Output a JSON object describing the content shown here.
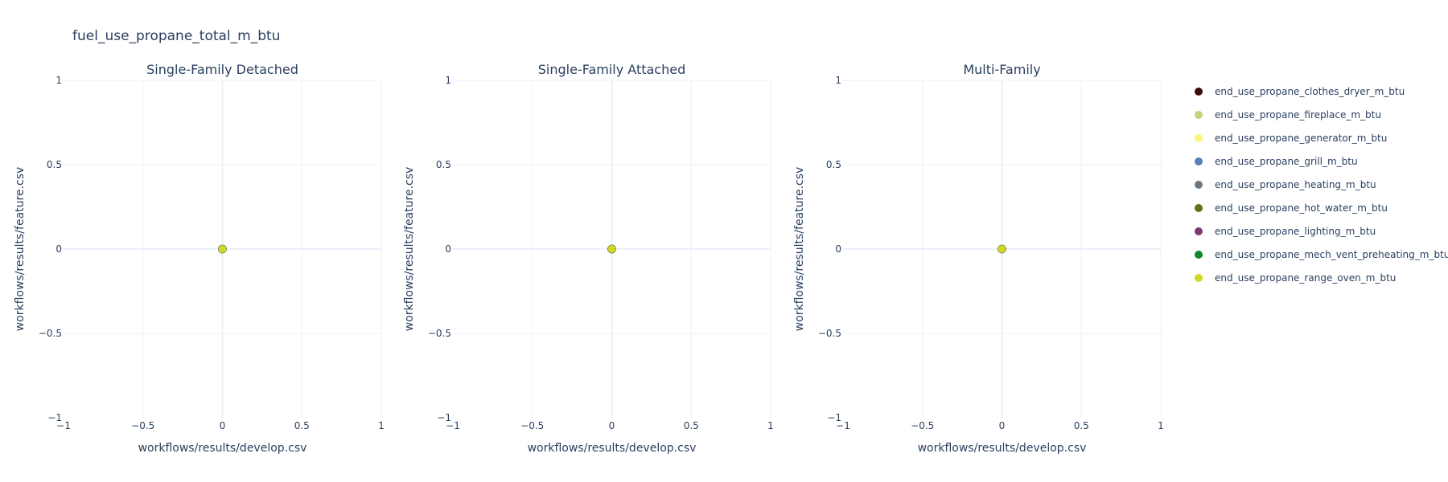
{
  "figure_title": "fuel_use_propane_total_m_btu",
  "legend": [
    {
      "name": "end_use_propane_clothes_dryer_m_btu",
      "color": "#3b0a0a"
    },
    {
      "name": "end_use_propane_fireplace_m_btu",
      "color": "#c8cf7a"
    },
    {
      "name": "end_use_propane_generator_m_btu",
      "color": "#fbf57a"
    },
    {
      "name": "end_use_propane_grill_m_btu",
      "color": "#5580b5"
    },
    {
      "name": "end_use_propane_heating_m_btu",
      "color": "#6a7a85"
    },
    {
      "name": "end_use_propane_hot_water_m_btu",
      "color": "#6b6d10"
    },
    {
      "name": "end_use_propane_lighting_m_btu",
      "color": "#7c3a70"
    },
    {
      "name": "end_use_propane_mech_vent_preheating_m_btu",
      "color": "#0b8a2a"
    },
    {
      "name": "end_use_propane_range_oven_m_btu",
      "color": "#cfd824"
    }
  ],
  "chart_data": [
    {
      "type": "scatter",
      "title": "Single-Family Detached",
      "xlabel": "workflows/results/develop.csv",
      "ylabel": "workflows/results/feature.csv",
      "xlim": [
        -1,
        1
      ],
      "ylim": [
        -1,
        1
      ],
      "xticks": [
        -1,
        -0.5,
        0,
        0.5,
        1
      ],
      "yticks": [
        -1,
        -0.5,
        0,
        0.5,
        1
      ],
      "xtick_labels": [
        "−1",
        "−0.5",
        "0",
        "0.5",
        "1"
      ],
      "ytick_labels": [
        "−1",
        "−0.5",
        "0",
        "0.5",
        "1"
      ],
      "series": [
        {
          "name": "end_use_propane_clothes_dryer_m_btu",
          "x": [
            0
          ],
          "y": [
            0
          ]
        },
        {
          "name": "end_use_propane_fireplace_m_btu",
          "x": [
            0
          ],
          "y": [
            0
          ]
        },
        {
          "name": "end_use_propane_generator_m_btu",
          "x": [
            0
          ],
          "y": [
            0
          ]
        },
        {
          "name": "end_use_propane_grill_m_btu",
          "x": [
            0
          ],
          "y": [
            0
          ]
        },
        {
          "name": "end_use_propane_heating_m_btu",
          "x": [
            0
          ],
          "y": [
            0
          ]
        },
        {
          "name": "end_use_propane_hot_water_m_btu",
          "x": [
            0
          ],
          "y": [
            0
          ]
        },
        {
          "name": "end_use_propane_lighting_m_btu",
          "x": [
            0
          ],
          "y": [
            0
          ]
        },
        {
          "name": "end_use_propane_mech_vent_preheating_m_btu",
          "x": [
            0
          ],
          "y": [
            0
          ]
        },
        {
          "name": "end_use_propane_range_oven_m_btu",
          "x": [
            0
          ],
          "y": [
            0
          ]
        }
      ]
    },
    {
      "type": "scatter",
      "title": "Single-Family Attached",
      "xlabel": "workflows/results/develop.csv",
      "ylabel": "workflows/results/feature.csv",
      "xlim": [
        -1,
        1
      ],
      "ylim": [
        -1,
        1
      ],
      "xticks": [
        -1,
        -0.5,
        0,
        0.5,
        1
      ],
      "yticks": [
        -1,
        -0.5,
        0,
        0.5,
        1
      ],
      "xtick_labels": [
        "−1",
        "−0.5",
        "0",
        "0.5",
        "1"
      ],
      "ytick_labels": [
        "−1",
        "−0.5",
        "0",
        "0.5",
        "1"
      ],
      "series": [
        {
          "name": "end_use_propane_clothes_dryer_m_btu",
          "x": [
            0
          ],
          "y": [
            0
          ]
        },
        {
          "name": "end_use_propane_fireplace_m_btu",
          "x": [
            0
          ],
          "y": [
            0
          ]
        },
        {
          "name": "end_use_propane_generator_m_btu",
          "x": [
            0
          ],
          "y": [
            0
          ]
        },
        {
          "name": "end_use_propane_grill_m_btu",
          "x": [
            0
          ],
          "y": [
            0
          ]
        },
        {
          "name": "end_use_propane_heating_m_btu",
          "x": [
            0
          ],
          "y": [
            0
          ]
        },
        {
          "name": "end_use_propane_hot_water_m_btu",
          "x": [
            0
          ],
          "y": [
            0
          ]
        },
        {
          "name": "end_use_propane_lighting_m_btu",
          "x": [
            0
          ],
          "y": [
            0
          ]
        },
        {
          "name": "end_use_propane_mech_vent_preheating_m_btu",
          "x": [
            0
          ],
          "y": [
            0
          ]
        },
        {
          "name": "end_use_propane_range_oven_m_btu",
          "x": [
            0
          ],
          "y": [
            0
          ]
        }
      ]
    },
    {
      "type": "scatter",
      "title": "Multi-Family",
      "xlabel": "workflows/results/develop.csv",
      "ylabel": "workflows/results/feature.csv",
      "xlim": [
        -1,
        1
      ],
      "ylim": [
        -1,
        1
      ],
      "xticks": [
        -1,
        -0.5,
        0,
        0.5,
        1
      ],
      "yticks": [
        -1,
        -0.5,
        0,
        0.5,
        1
      ],
      "xtick_labels": [
        "−1",
        "−0.5",
        "0",
        "0.5",
        "1"
      ],
      "ytick_labels": [
        "−1",
        "−0.5",
        "0",
        "0.5",
        "1"
      ],
      "series": [
        {
          "name": "end_use_propane_clothes_dryer_m_btu",
          "x": [
            0
          ],
          "y": [
            0
          ]
        },
        {
          "name": "end_use_propane_fireplace_m_btu",
          "x": [
            0
          ],
          "y": [
            0
          ]
        },
        {
          "name": "end_use_propane_generator_m_btu",
          "x": [
            0
          ],
          "y": [
            0
          ]
        },
        {
          "name": "end_use_propane_grill_m_btu",
          "x": [
            0
          ],
          "y": [
            0
          ]
        },
        {
          "name": "end_use_propane_heating_m_btu",
          "x": [
            0
          ],
          "y": [
            0
          ]
        },
        {
          "name": "end_use_propane_hot_water_m_btu",
          "x": [
            0
          ],
          "y": [
            0
          ]
        },
        {
          "name": "end_use_propane_lighting_m_btu",
          "x": [
            0
          ],
          "y": [
            0
          ]
        },
        {
          "name": "end_use_propane_mech_vent_preheating_m_btu",
          "x": [
            0
          ],
          "y": [
            0
          ]
        },
        {
          "name": "end_use_propane_range_oven_m_btu",
          "x": [
            0
          ],
          "y": [
            0
          ]
        }
      ]
    }
  ]
}
